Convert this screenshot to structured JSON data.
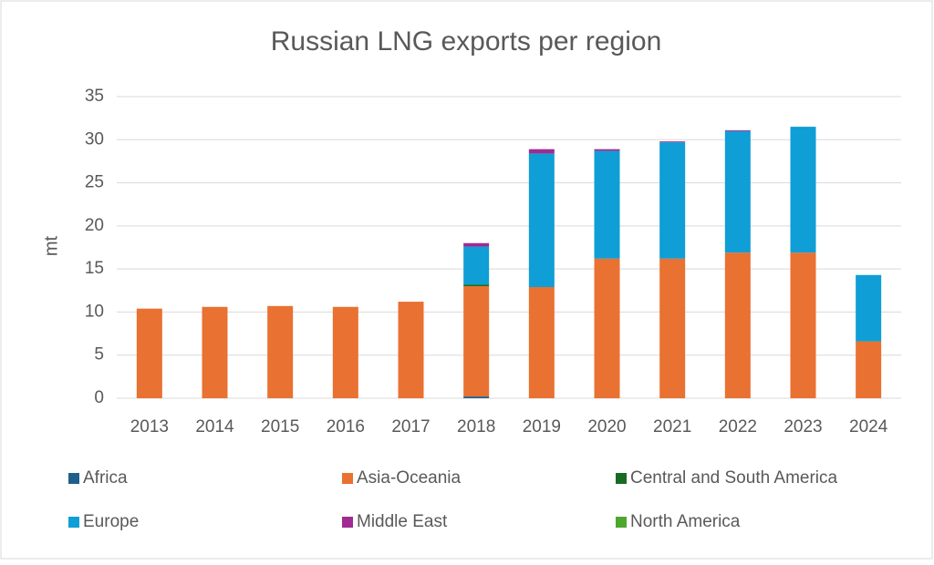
{
  "chart_data": {
    "type": "stacked-bar",
    "title": "Russian LNG exports per region",
    "y_label": "mt",
    "categories": [
      "2013",
      "2014",
      "2015",
      "2016",
      "2017",
      "2018",
      "2019",
      "2020",
      "2021",
      "2022",
      "2023",
      "2024"
    ],
    "series": [
      {
        "name": "Africa",
        "color": "#1f5f8b",
        "values": [
          0,
          0,
          0,
          0,
          0,
          0.2,
          0,
          0,
          0,
          0,
          0,
          0
        ]
      },
      {
        "name": "Asia-Oceania",
        "color": "#e97132",
        "values": [
          10.4,
          10.6,
          10.7,
          10.6,
          11.2,
          12.8,
          12.9,
          16.2,
          16.2,
          16.9,
          16.9,
          6.6
        ]
      },
      {
        "name": "Central and South America",
        "color": "#196b24",
        "values": [
          0,
          0,
          0,
          0,
          0,
          0.2,
          0,
          0,
          0,
          0,
          0,
          0
        ]
      },
      {
        "name": "Europe",
        "color": "#0f9ed5",
        "values": [
          0,
          0,
          0,
          0,
          0,
          4.4,
          15.5,
          12.5,
          13.5,
          14.1,
          14.6,
          7.7
        ]
      },
      {
        "name": "Middle East",
        "color": "#a02b93",
        "values": [
          0,
          0,
          0,
          0,
          0,
          0.4,
          0.5,
          0.2,
          0.1,
          0.1,
          0,
          0
        ]
      },
      {
        "name": "North America",
        "color": "#4ea72e",
        "values": [
          0,
          0,
          0,
          0,
          0,
          0,
          0,
          0,
          0,
          0,
          0,
          0
        ]
      }
    ],
    "ylim": [
      0,
      35
    ],
    "yticks": [
      0,
      5,
      10,
      15,
      20,
      25,
      30,
      35
    ],
    "grid": true
  }
}
